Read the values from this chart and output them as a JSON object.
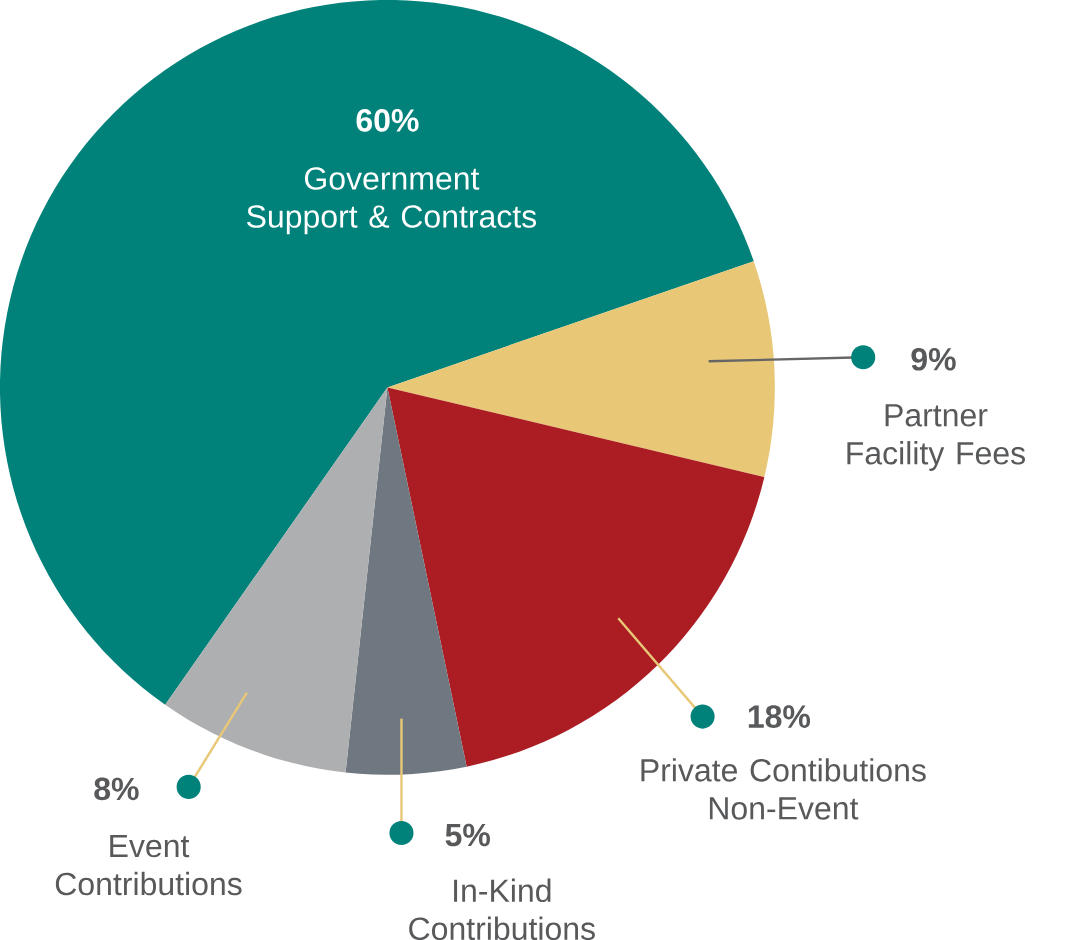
{
  "chart_data": {
    "type": "pie",
    "categories": [
      "Government Support & Contracts",
      "Partner Facility Fees",
      "Private Contibutions Non-Event",
      "In-Kind Contributions",
      "Event Contributions"
    ],
    "values": [
      60,
      9,
      18,
      5,
      8
    ],
    "colors": [
      "#00827a",
      "#e8c877",
      "#ab1c23",
      "#6f7880",
      "#aeafb1"
    ],
    "value_labels": [
      "60%",
      "9%",
      "18%",
      "5%",
      "8%"
    ]
  }
}
